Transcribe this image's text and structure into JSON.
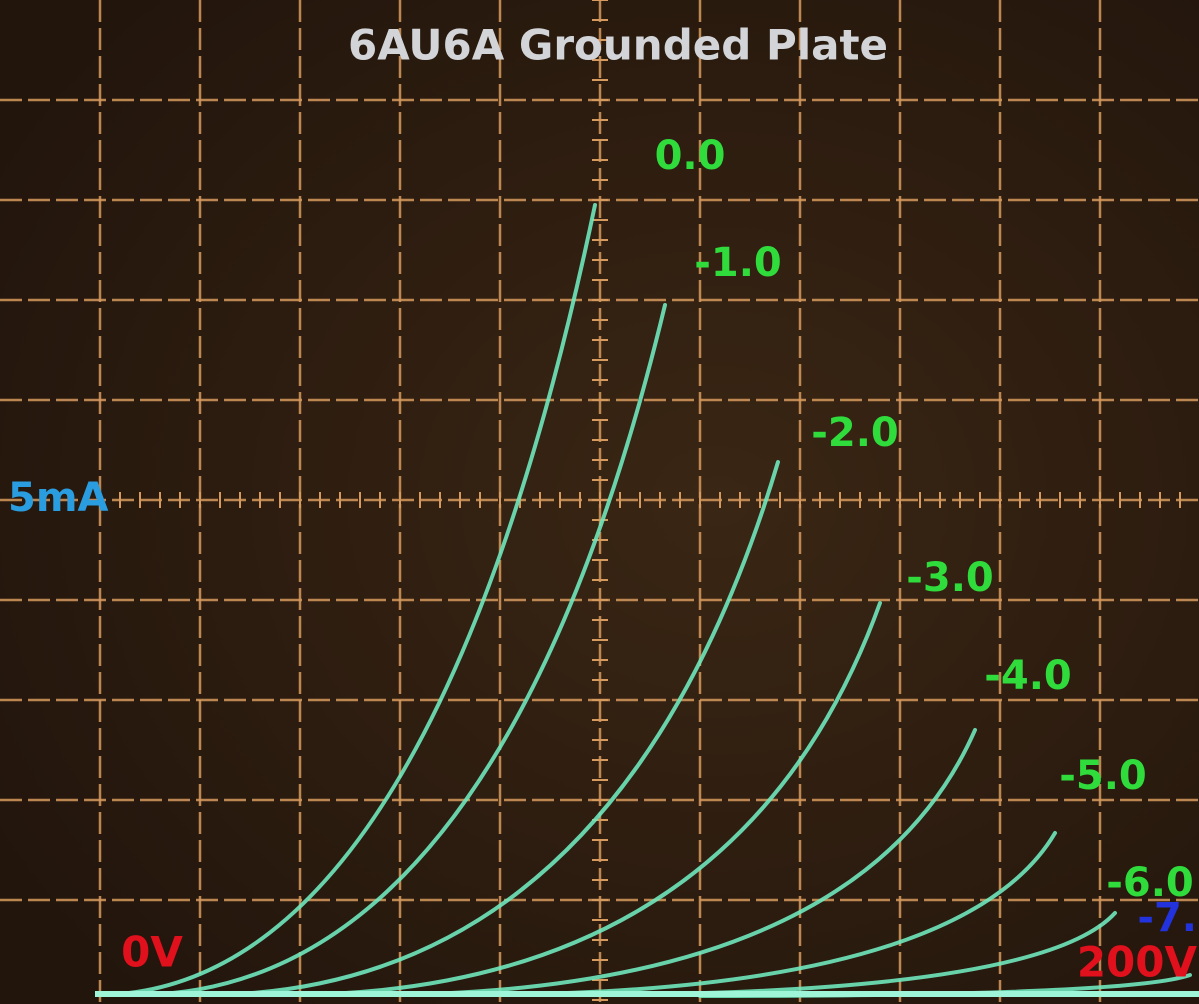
{
  "title": "6AU6A Grounded Plate",
  "curve_labels": [
    "0.0",
    "-1.0",
    "-2.0",
    "-3.0",
    "-4.0",
    "-5.0",
    "-6.0",
    "-7."
  ],
  "y_scale_label": "5mA",
  "x_start_label": "0V",
  "x_end_label": "200V"
}
